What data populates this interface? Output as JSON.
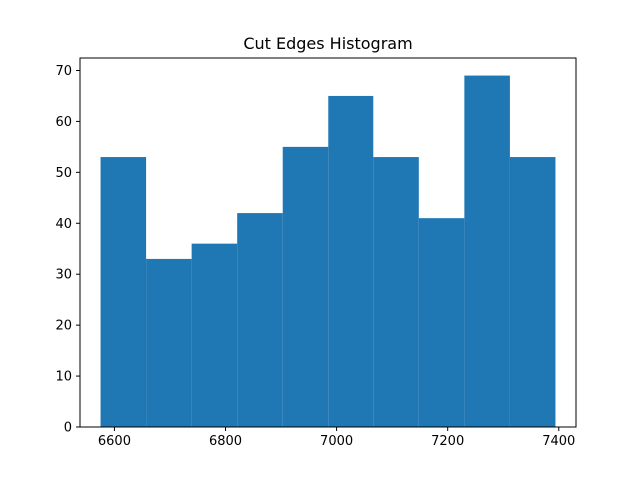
{
  "chart_data": {
    "type": "bar",
    "title": "Cut Edges Histogram",
    "xlabel": "",
    "ylabel": "",
    "bin_edges": [
      6575,
      6657,
      6739,
      6821,
      6903,
      6985,
      7066,
      7148,
      7230,
      7312,
      7394
    ],
    "values": [
      53,
      33,
      36,
      42,
      55,
      65,
      53,
      41,
      69,
      53
    ],
    "xlim": [
      6538,
      7431
    ],
    "ylim": [
      0,
      72.45
    ],
    "xticks": [
      6600,
      6800,
      7000,
      7200,
      7400
    ],
    "yticks": [
      0,
      10,
      20,
      30,
      40,
      50,
      60,
      70
    ],
    "xtick_labels": [
      "6600",
      "6800",
      "7000",
      "7200",
      "7400"
    ],
    "ytick_labels": [
      "0",
      "10",
      "20",
      "30",
      "40",
      "50",
      "60",
      "70"
    ],
    "bar_color": "#1f77b4",
    "grid": false,
    "legend": "none"
  }
}
